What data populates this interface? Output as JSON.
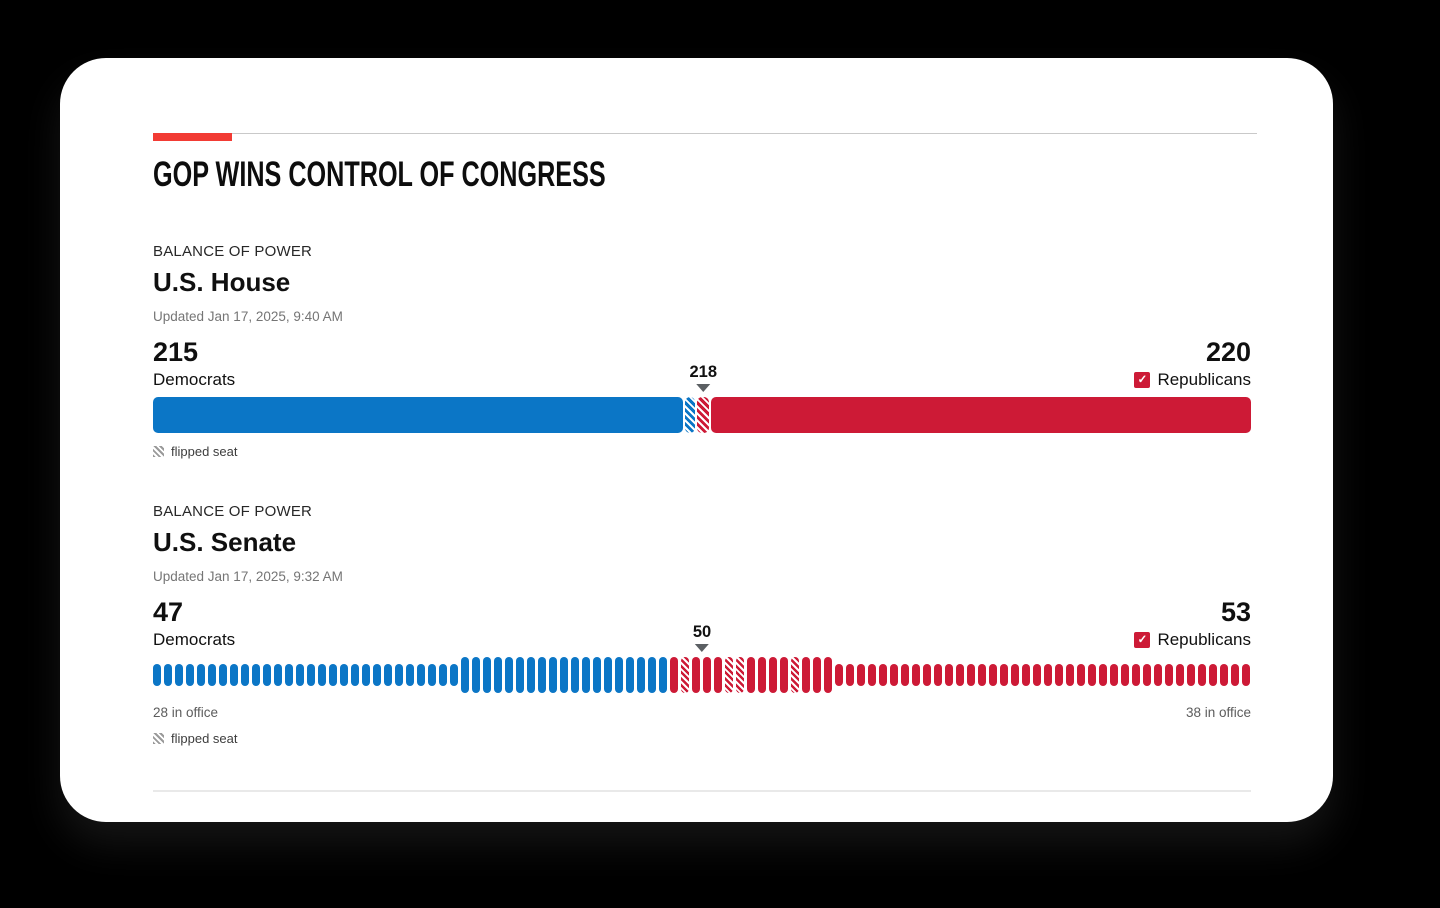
{
  "header": {
    "title": "GOP WINS CONTROL OF CONGRESS"
  },
  "colors": {
    "accent_red": "#f23b34",
    "democrat_blue": "#0b76c6",
    "republican_red": "#cd1a36",
    "marker_gray": "#5b5f63"
  },
  "house": {
    "kicker": "BALANCE OF POWER",
    "title": "U.S. House",
    "updated": "Updated Jan 17, 2025, 9:40 AM",
    "dem_count": "215",
    "dem_label": "Democrats",
    "majority": "218",
    "rep_count": "220",
    "rep_label": "Republicans",
    "winner_checkbox_icon": "checkmark-icon",
    "checkmark": "✓",
    "flipped_legend": "flipped seat"
  },
  "senate": {
    "kicker": "BALANCE OF POWER",
    "title": "U.S. Senate",
    "updated": "Updated Jan 17, 2025, 9:32 AM",
    "dem_count": "47",
    "dem_label": "Democrats",
    "majority": "50",
    "rep_count": "53",
    "rep_label": "Republicans",
    "winner_checkbox_icon": "checkmark-icon",
    "checkmark": "✓",
    "dem_in_office": "28 in office",
    "rep_in_office": "38 in office",
    "flipped_legend": "flipped seat"
  },
  "chart_data": [
    {
      "type": "bar",
      "title": "U.S. House balance of power",
      "updated": "Jan 17, 2025, 9:40 AM",
      "total_seats": 435,
      "majority_marker": 218,
      "series": [
        {
          "name": "Democrats",
          "value": 215
        },
        {
          "name": "Republicans",
          "value": 220
        }
      ],
      "winner": "Republicans",
      "segments": [
        {
          "party": "Democrats",
          "style": "solid",
          "seats": 211
        },
        {
          "party": "Democrats",
          "style": "flipped",
          "seats": 4
        },
        {
          "party": "Republicans",
          "style": "flipped",
          "seats": 5
        },
        {
          "party": "Republicans",
          "style": "solid",
          "seats": 215
        }
      ],
      "legend": [
        "flipped seat"
      ]
    },
    {
      "type": "bar",
      "title": "U.S. Senate balance of power",
      "updated": "Jan 17, 2025, 9:32 AM",
      "total_seats": 100,
      "majority_marker": 50,
      "series": [
        {
          "name": "Democrats",
          "value": 47
        },
        {
          "name": "Republicans",
          "value": 53
        }
      ],
      "winner": "Republicans",
      "seat_groups": [
        {
          "party": "Democrats",
          "style": "in-office",
          "count": 28
        },
        {
          "party": "Democrats",
          "style": "elected",
          "count": 19
        },
        {
          "party": "Republicans",
          "style": "elected",
          "count": 15,
          "flipped_positions": [
            2,
            6,
            7,
            12
          ]
        },
        {
          "party": "Republicans",
          "style": "in-office",
          "count": 38
        }
      ],
      "annotations": {
        "dem_in_office": "28 in office",
        "rep_in_office": "38 in office"
      },
      "legend": [
        "flipped seat"
      ]
    }
  ]
}
